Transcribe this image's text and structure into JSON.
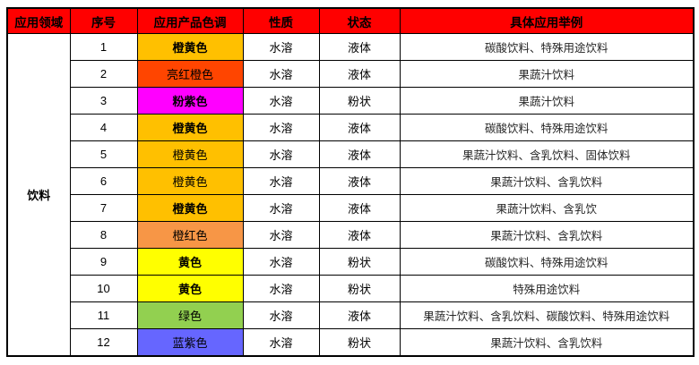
{
  "colors": {
    "header_bg": "#FF0000",
    "header_text": "#000000",
    "border": "#000000",
    "page_bg": "#FFFFFF"
  },
  "table": {
    "headers": [
      "应用领域",
      "序号",
      "应用产品色调",
      "性质",
      "状态",
      "具体应用举例"
    ],
    "category_label": "饮料",
    "rows": [
      {
        "num": "1",
        "color_name": "橙黄色",
        "color_hex": "#FFC000",
        "bold": true,
        "property": "水溶",
        "state": "液体",
        "examples": "碳酸饮料、特殊用途饮料"
      },
      {
        "num": "2",
        "color_name": "亮红橙色",
        "color_hex": "#FF4500",
        "bold": false,
        "property": "水溶",
        "state": "液体",
        "examples": "果蔬汁饮料"
      },
      {
        "num": "3",
        "color_name": "粉紫色",
        "color_hex": "#FF00FF",
        "bold": true,
        "property": "水溶",
        "state": "粉状",
        "examples": "果蔬汁饮料"
      },
      {
        "num": "4",
        "color_name": "橙黄色",
        "color_hex": "#FFC000",
        "bold": true,
        "property": "水溶",
        "state": "液体",
        "examples": "碳酸饮料、特殊用途饮料"
      },
      {
        "num": "5",
        "color_name": "橙黄色",
        "color_hex": "#FFC000",
        "bold": false,
        "property": "水溶",
        "state": "液体",
        "examples": "果蔬汁饮料、含乳饮料、固体饮料"
      },
      {
        "num": "6",
        "color_name": "橙黄色",
        "color_hex": "#FFC000",
        "bold": false,
        "property": "水溶",
        "state": "液体",
        "examples": "果蔬汁饮料、含乳饮料"
      },
      {
        "num": "7",
        "color_name": "橙黄色",
        "color_hex": "#FFC000",
        "bold": true,
        "property": "水溶",
        "state": "液体",
        "examples": "果蔬汁饮料、含乳饮"
      },
      {
        "num": "8",
        "color_name": "橙红色",
        "color_hex": "#F79646",
        "bold": false,
        "property": "水溶",
        "state": "液体",
        "examples": "果蔬汁饮料、含乳饮料"
      },
      {
        "num": "9",
        "color_name": "黄色",
        "color_hex": "#FFFF00",
        "bold": true,
        "property": "水溶",
        "state": "粉状",
        "examples": "碳酸饮料、特殊用途饮料"
      },
      {
        "num": "10",
        "color_name": "黄色",
        "color_hex": "#FFFF00",
        "bold": true,
        "property": "水溶",
        "state": "粉状",
        "examples": "特殊用途饮料"
      },
      {
        "num": "11",
        "color_name": "绿色",
        "color_hex": "#92D050",
        "bold": false,
        "property": "水溶",
        "state": "液体",
        "examples": "果蔬汁饮料、含乳饮料、碳酸饮料、特殊用途饮料"
      },
      {
        "num": "12",
        "color_name": "蓝紫色",
        "color_hex": "#6666FF",
        "bold": false,
        "property": "水溶",
        "state": "粉状",
        "examples": "果蔬汁饮料、含乳饮料"
      }
    ]
  }
}
